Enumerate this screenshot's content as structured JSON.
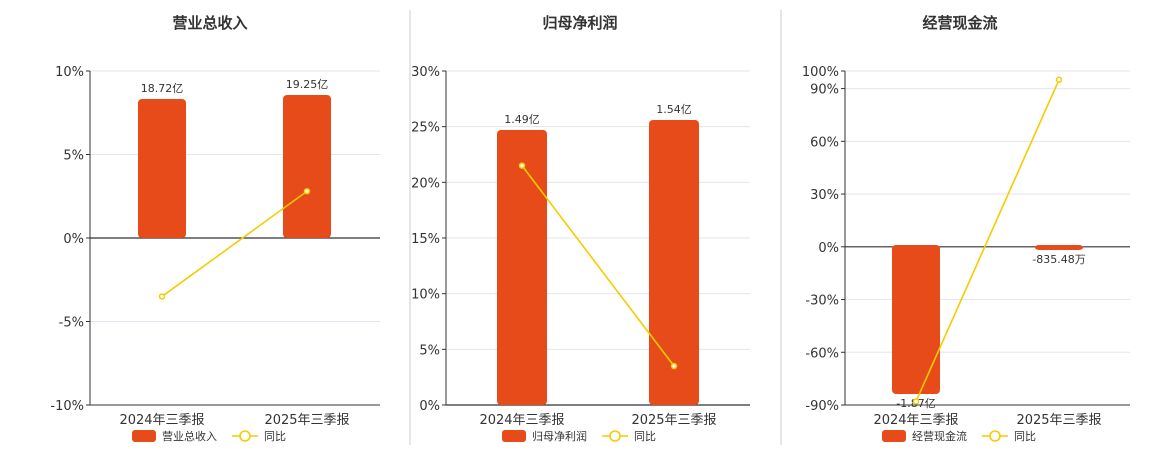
{
  "colors": {
    "bar": "#e84b1a",
    "line": "#f5cc00",
    "line_marker_fill": "#ffffff"
  },
  "chart_data": [
    {
      "type": "bar",
      "title": "营业总收入",
      "categories": [
        "2024年三季报",
        "2025年三季报"
      ],
      "series": [
        {
          "name": "营业总收入",
          "type": "bar",
          "data_labels": [
            "18.72亿",
            "19.25亿"
          ]
        },
        {
          "name": "同比",
          "type": "line",
          "values": [
            -3.5,
            2.8
          ]
        }
      ],
      "y_ticks": [
        "10%",
        "5%",
        "0%",
        "-5%",
        "-10%"
      ],
      "ylim": [
        -10,
        10
      ],
      "yunit": "%",
      "grid": true,
      "legend_position": "bottom"
    },
    {
      "type": "bar",
      "title": "归母净利润",
      "categories": [
        "2024年三季报",
        "2025年三季报"
      ],
      "series": [
        {
          "name": "归母净利润",
          "type": "bar",
          "data_labels": [
            "1.49亿",
            "1.54亿"
          ]
        },
        {
          "name": "同比",
          "type": "line",
          "values": [
            21.5,
            3.5
          ]
        }
      ],
      "y_ticks": [
        "30%",
        "25%",
        "20%",
        "15%",
        "10%",
        "5%",
        "0%"
      ],
      "ylim": [
        0,
        30
      ],
      "yunit": "%",
      "grid": true,
      "legend_position": "bottom"
    },
    {
      "type": "bar",
      "title": "经营现金流",
      "categories": [
        "2024年三季报",
        "2025年三季报"
      ],
      "series": [
        {
          "name": "经营现金流",
          "type": "bar",
          "data_labels": [
            "-1.87亿",
            "-835.48万"
          ]
        },
        {
          "name": "同比",
          "type": "line",
          "values": [
            -88,
            95
          ]
        }
      ],
      "y_ticks": [
        "100%",
        "90%",
        "60%",
        "30%",
        "0%",
        "-30%",
        "-60%",
        "-90%"
      ],
      "ylim": [
        -90,
        100
      ],
      "yunit": "%",
      "grid": true,
      "legend_position": "bottom"
    }
  ]
}
